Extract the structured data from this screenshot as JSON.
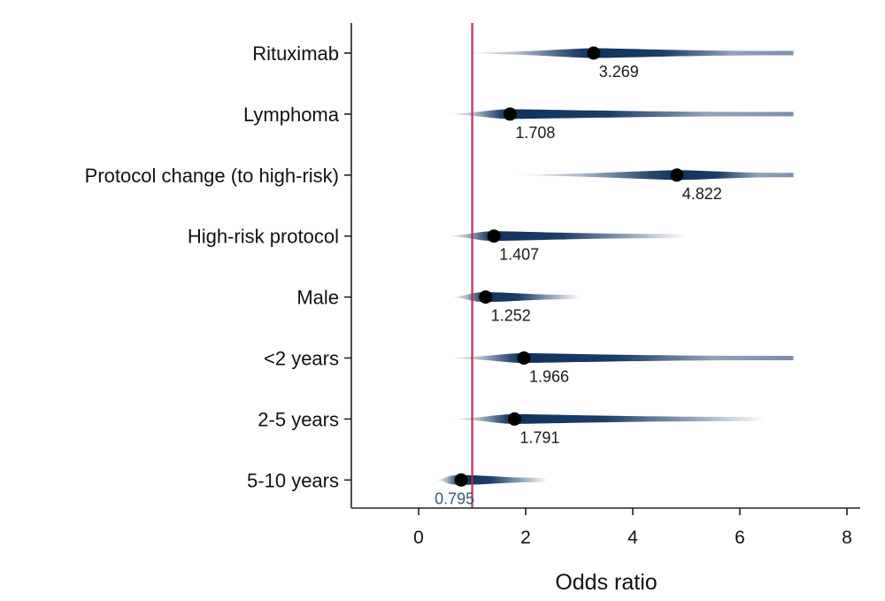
{
  "chart_data": {
    "type": "scatter",
    "xlabel": "Odds ratio",
    "ylabel": "",
    "xlim": [
      -1.2,
      8.2
    ],
    "xticks": [
      0,
      2,
      4,
      6,
      8
    ],
    "reference_line": 1,
    "reference_color": "#d0184b",
    "band_color": "#0f3360",
    "grid": false,
    "categories": [
      "Rituximab",
      "Lymphoma",
      "Protocol change (to high-risk)",
      "High-risk protocol",
      "Male",
      "<2 years",
      "2-5 years",
      "5-10 years"
    ],
    "estimates": [
      3.269,
      1.708,
      4.822,
      1.407,
      1.252,
      1.966,
      1.791,
      0.795
    ],
    "value_labels": [
      "3.269",
      "1.708",
      "4.822",
      "1.407",
      "1.252",
      "1.966",
      "1.791",
      "0.795"
    ],
    "intervals": [
      {
        "low": 0.75,
        "high": 7.0
      },
      {
        "low": 0.5,
        "high": 7.0
      },
      {
        "low": 1.6,
        "high": 7.0
      },
      {
        "low": 0.5,
        "high": 5.0
      },
      {
        "low": 0.6,
        "high": 3.0
      },
      {
        "low": 0.5,
        "high": 7.0
      },
      {
        "low": 0.6,
        "high": 6.5
      },
      {
        "low": 0.3,
        "high": 2.4
      }
    ]
  }
}
